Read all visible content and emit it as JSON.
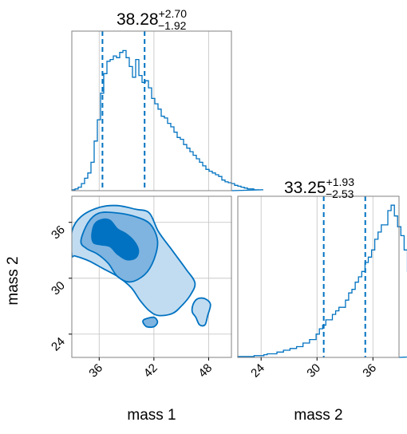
{
  "colors": {
    "primary": "#0072c1",
    "fill_dark": "#0072c1",
    "fill_mid": "#7fb4e0",
    "fill_light": "#c1dcf1",
    "grid": "#c8c8c8",
    "frame": "#808080"
  },
  "chart_data": [
    {
      "type": "histogram",
      "panel": "top-left",
      "variable": "mass 1",
      "title": {
        "median": "38.28",
        "upper": "+2.70",
        "lower": "−1.92"
      },
      "quantile_lines": [
        36.36,
        40.98
      ],
      "xlim": [
        33.0,
        50.5
      ],
      "xticks": [
        36,
        42,
        48
      ],
      "bin_edges_start": 33.0,
      "bin_width": 0.35,
      "counts": [
        0.5,
        1,
        2,
        4,
        7,
        10,
        16,
        28,
        40,
        55,
        66,
        73,
        74,
        76,
        75,
        78,
        79,
        75,
        70,
        64,
        74,
        65,
        61,
        62,
        58,
        52,
        49,
        46,
        42,
        41,
        38,
        36,
        33,
        30,
        29,
        26,
        24,
        22,
        20,
        18,
        16,
        14,
        12,
        11,
        10,
        9,
        8,
        6,
        5,
        4.5,
        4,
        3,
        2.5,
        2,
        1.5,
        1,
        1,
        0.5,
        0.5,
        0.5
      ],
      "ymax": 90
    },
    {
      "type": "contour",
      "panel": "bottom-left",
      "xlabel": "mass 1",
      "ylabel": "mass 2",
      "xlim": [
        33.0,
        50.5
      ],
      "ylim": [
        21.5,
        38.8
      ],
      "xticks": [
        36,
        42,
        48
      ],
      "yticks": [
        24,
        30,
        36
      ],
      "levels": [
        {
          "name": "outer",
          "points": [
            [
              33.0,
              32.5
            ],
            [
              33.0,
              35.0
            ],
            [
              34.0,
              36.6
            ],
            [
              36.0,
              37.6
            ],
            [
              38.0,
              37.8
            ],
            [
              40.0,
              37.4
            ],
            [
              41.5,
              37.0
            ],
            [
              42.5,
              35.0
            ],
            [
              44.0,
              33.0
            ],
            [
              45.5,
              31.0
            ],
            [
              46.5,
              29.5
            ],
            [
              46.0,
              28.2
            ],
            [
              45.0,
              27.0
            ],
            [
              44.0,
              26.2
            ],
            [
              42.5,
              26.0
            ],
            [
              41.5,
              26.5
            ],
            [
              40.5,
              27.6
            ],
            [
              39.5,
              29.0
            ],
            [
              38.0,
              30.2
            ],
            [
              36.5,
              31.0
            ],
            [
              35.0,
              31.8
            ],
            [
              34.0,
              32.2
            ],
            [
              33.3,
              32.4
            ]
          ]
        },
        {
          "name": "middle",
          "points": [
            [
              34.0,
              34.0
            ],
            [
              34.8,
              36.0
            ],
            [
              36.0,
              37.0
            ],
            [
              38.0,
              37.0
            ],
            [
              40.0,
              36.6
            ],
            [
              41.6,
              35.8
            ],
            [
              42.4,
              34.0
            ],
            [
              42.0,
              32.0
            ],
            [
              41.0,
              30.4
            ],
            [
              39.4,
              29.6
            ],
            [
              38.0,
              30.2
            ],
            [
              37.0,
              31.6
            ],
            [
              35.8,
              32.6
            ],
            [
              34.6,
              33.2
            ]
          ]
        },
        {
          "name": "inner",
          "points": [
            [
              35.2,
              34.6
            ],
            [
              35.5,
              35.8
            ],
            [
              36.3,
              36.3
            ],
            [
              37.2,
              36.2
            ],
            [
              38.0,
              35.3
            ],
            [
              38.9,
              34.8
            ],
            [
              39.8,
              34.0
            ],
            [
              40.3,
              33.0
            ],
            [
              40.0,
              32.2
            ],
            [
              39.0,
              32.0
            ],
            [
              38.0,
              32.6
            ],
            [
              37.2,
              33.4
            ],
            [
              36.2,
              33.6
            ],
            [
              35.4,
              33.8
            ]
          ]
        },
        {
          "name": "island-right",
          "points": [
            [
              46.3,
              27.2
            ],
            [
              46.8,
              27.8
            ],
            [
              47.6,
              27.8
            ],
            [
              48.2,
              27.2
            ],
            [
              47.9,
              26.0
            ],
            [
              47.6,
              25.0
            ],
            [
              47.0,
              25.0
            ],
            [
              46.6,
              25.8
            ],
            [
              46.2,
              26.4
            ]
          ]
        },
        {
          "name": "island-bottom",
          "points": [
            [
              40.8,
              25.3
            ],
            [
              41.0,
              25.6
            ],
            [
              42.0,
              25.8
            ],
            [
              42.4,
              25.3
            ],
            [
              42.0,
              24.8
            ],
            [
              41.2,
              24.8
            ]
          ]
        }
      ]
    },
    {
      "type": "histogram",
      "panel": "bottom-right",
      "variable": "mass 2",
      "xlabel": "mass 2",
      "title": {
        "median": "33.25",
        "upper": "+1.93",
        "lower": "−2.53"
      },
      "quantile_lines": [
        30.72,
        35.18
      ],
      "xlim": [
        21.5,
        38.8
      ],
      "xticks": [
        24,
        30,
        36
      ],
      "bin_edges_start": 21.5,
      "bin_width": 0.35,
      "counts": [
        0.5,
        0.5,
        0.5,
        0.5,
        0.5,
        1,
        1,
        1,
        1.5,
        2,
        2,
        2,
        3,
        3,
        4,
        4,
        5,
        5,
        6,
        6,
        8,
        8,
        10,
        10,
        13,
        16,
        18,
        21,
        21,
        24,
        26,
        28,
        28,
        32,
        36,
        38,
        42,
        45,
        48,
        53,
        56,
        60,
        66,
        70,
        74,
        74,
        82,
        85,
        79,
        73,
        68,
        60,
        48,
        36,
        24,
        14,
        8,
        4,
        2,
        1
      ],
      "ymax": 90
    }
  ]
}
